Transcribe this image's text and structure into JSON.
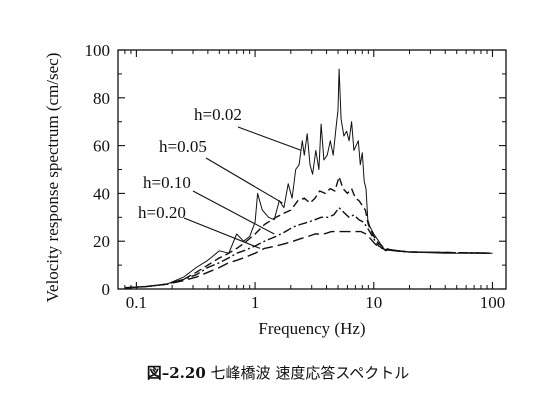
{
  "chart_data": {
    "type": "line",
    "xscale": "log",
    "xlim": [
      0.07,
      130
    ],
    "ylim": [
      0,
      100
    ],
    "xlabel": "Frequency (Hz)",
    "ylabel": "Velocity response spectrum (cm/sec)",
    "x_ticks": [
      0.1,
      1,
      10,
      100
    ],
    "x_tick_labels": [
      "0.1",
      "1",
      "10",
      "100"
    ],
    "y_ticks": [
      0,
      20,
      40,
      60,
      80,
      100
    ],
    "y_tick_labels": [
      "0",
      "20",
      "40",
      "60",
      "80",
      "100"
    ],
    "grid": false,
    "series": [
      {
        "name": "h=0.02",
        "style": "solid",
        "points": [
          [
            0.08,
            0.5
          ],
          [
            0.12,
            1
          ],
          [
            0.18,
            2
          ],
          [
            0.25,
            5
          ],
          [
            0.32,
            9
          ],
          [
            0.4,
            12
          ],
          [
            0.5,
            16
          ],
          [
            0.6,
            15
          ],
          [
            0.7,
            23
          ],
          [
            0.8,
            20
          ],
          [
            0.9,
            22
          ],
          [
            1.0,
            28
          ],
          [
            1.05,
            40
          ],
          [
            1.15,
            33
          ],
          [
            1.3,
            30
          ],
          [
            1.45,
            29
          ],
          [
            1.6,
            37
          ],
          [
            1.75,
            34
          ],
          [
            1.9,
            44
          ],
          [
            2.05,
            38
          ],
          [
            2.2,
            50
          ],
          [
            2.35,
            52
          ],
          [
            2.5,
            62
          ],
          [
            2.6,
            56
          ],
          [
            2.75,
            65
          ],
          [
            2.9,
            52
          ],
          [
            3.05,
            48
          ],
          [
            3.25,
            58
          ],
          [
            3.45,
            50
          ],
          [
            3.6,
            69
          ],
          [
            3.8,
            54
          ],
          [
            4.05,
            56
          ],
          [
            4.3,
            62
          ],
          [
            4.55,
            56
          ],
          [
            4.8,
            67
          ],
          [
            5.0,
            75
          ],
          [
            5.1,
            92
          ],
          [
            5.3,
            71
          ],
          [
            5.6,
            64
          ],
          [
            5.9,
            66
          ],
          [
            6.2,
            62
          ],
          [
            6.5,
            70
          ],
          [
            6.8,
            58
          ],
          [
            7.1,
            60
          ],
          [
            7.4,
            62
          ],
          [
            7.7,
            52
          ],
          [
            8.0,
            57
          ],
          [
            8.3,
            45
          ],
          [
            8.6,
            42
          ],
          [
            8.9,
            29
          ],
          [
            9.3,
            26
          ],
          [
            10,
            23
          ],
          [
            11,
            20
          ],
          [
            12.5,
            16
          ],
          [
            14,
            16.5
          ],
          [
            20,
            15.5
          ],
          [
            40,
            15
          ],
          [
            100,
            15
          ]
        ]
      },
      {
        "name": "h=0.05",
        "style": "dash",
        "points": [
          [
            0.08,
            0.5
          ],
          [
            0.12,
            1
          ],
          [
            0.18,
            2
          ],
          [
            0.25,
            4
          ],
          [
            0.32,
            7
          ],
          [
            0.4,
            10
          ],
          [
            0.5,
            13
          ],
          [
            0.6,
            15
          ],
          [
            0.7,
            17
          ],
          [
            0.8,
            19
          ],
          [
            1.0,
            23
          ],
          [
            1.2,
            27
          ],
          [
            1.5,
            30
          ],
          [
            1.8,
            32
          ],
          [
            2.0,
            33
          ],
          [
            2.3,
            37
          ],
          [
            2.6,
            38
          ],
          [
            2.9,
            36
          ],
          [
            3.2,
            38
          ],
          [
            3.5,
            41
          ],
          [
            3.9,
            40
          ],
          [
            4.3,
            42
          ],
          [
            4.7,
            41
          ],
          [
            5.1,
            47
          ],
          [
            5.5,
            42
          ],
          [
            6.0,
            40
          ],
          [
            6.5,
            42
          ],
          [
            7.0,
            38
          ],
          [
            7.5,
            37
          ],
          [
            8.0,
            35
          ],
          [
            8.5,
            33
          ],
          [
            9.0,
            27
          ],
          [
            10,
            22
          ],
          [
            11,
            19
          ],
          [
            12.5,
            17
          ],
          [
            15,
            16
          ],
          [
            20,
            15.5
          ],
          [
            100,
            15
          ]
        ]
      },
      {
        "name": "h=0.10",
        "style": "dashdot",
        "points": [
          [
            0.08,
            0.5
          ],
          [
            0.12,
            1
          ],
          [
            0.18,
            2
          ],
          [
            0.25,
            4
          ],
          [
            0.32,
            6
          ],
          [
            0.4,
            9
          ],
          [
            0.5,
            11
          ],
          [
            0.6,
            13
          ],
          [
            0.7,
            15
          ],
          [
            0.8,
            16
          ],
          [
            1.0,
            18
          ],
          [
            1.2,
            20
          ],
          [
            1.5,
            22
          ],
          [
            1.8,
            24
          ],
          [
            2.1,
            26
          ],
          [
            2.4,
            27
          ],
          [
            2.8,
            28
          ],
          [
            3.2,
            29
          ],
          [
            3.6,
            30
          ],
          [
            4.1,
            30
          ],
          [
            4.6,
            31
          ],
          [
            5.1,
            34
          ],
          [
            5.6,
            32
          ],
          [
            6.2,
            30
          ],
          [
            6.8,
            31
          ],
          [
            7.5,
            29
          ],
          [
            8.2,
            28
          ],
          [
            9.0,
            25
          ],
          [
            10,
            21
          ],
          [
            11,
            18
          ],
          [
            12.5,
            16.5
          ],
          [
            15,
            16
          ],
          [
            20,
            15.5
          ],
          [
            100,
            15
          ]
        ]
      },
      {
        "name": "h=0.20",
        "style": "longdash",
        "points": [
          [
            0.08,
            0.5
          ],
          [
            0.12,
            1
          ],
          [
            0.18,
            2
          ],
          [
            0.25,
            3.5
          ],
          [
            0.32,
            5
          ],
          [
            0.4,
            7
          ],
          [
            0.5,
            9
          ],
          [
            0.6,
            11
          ],
          [
            0.7,
            12
          ],
          [
            0.8,
            13
          ],
          [
            1.0,
            15
          ],
          [
            1.2,
            17
          ],
          [
            1.5,
            18
          ],
          [
            1.8,
            19
          ],
          [
            2.1,
            20
          ],
          [
            2.4,
            21
          ],
          [
            2.8,
            22
          ],
          [
            3.2,
            23
          ],
          [
            3.8,
            23
          ],
          [
            4.4,
            24
          ],
          [
            5.0,
            24
          ],
          [
            5.6,
            24
          ],
          [
            6.2,
            24
          ],
          [
            7.0,
            24
          ],
          [
            7.8,
            24
          ],
          [
            8.6,
            23
          ],
          [
            9.4,
            21
          ],
          [
            10.2,
            19
          ],
          [
            11,
            17.5
          ],
          [
            12.5,
            16.5
          ],
          [
            15,
            16
          ],
          [
            20,
            15.5
          ],
          [
            100,
            15
          ]
        ]
      }
    ],
    "curve_labels": [
      "h=0.02",
      "h=0.05",
      "h=0.10",
      "h=0.20"
    ]
  },
  "caption": {
    "figure_number": "図–2.20",
    "text": "七峰橋波 速度応答スペクトル"
  }
}
